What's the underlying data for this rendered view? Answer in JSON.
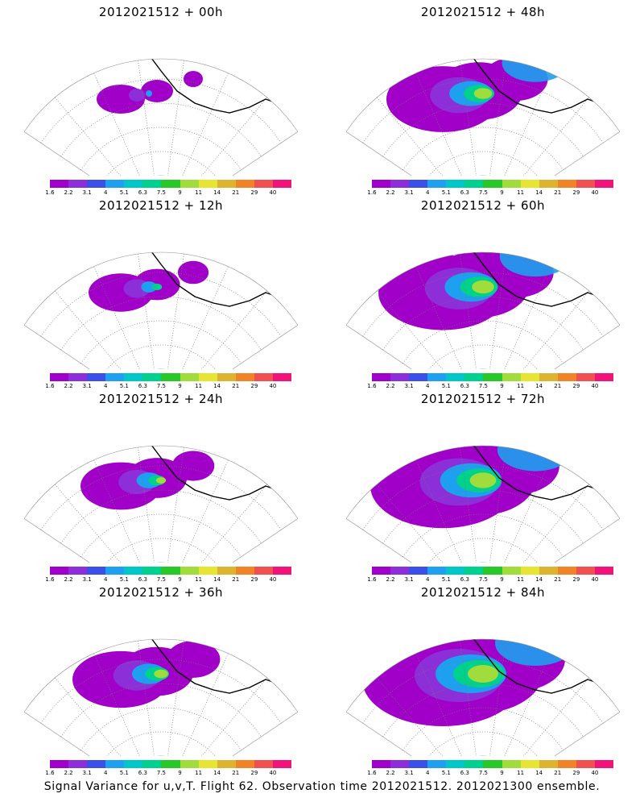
{
  "panels": [
    {
      "title": "2012021512 + 00h",
      "lead": 0
    },
    {
      "title": "2012021512 + 48h",
      "lead": 48
    },
    {
      "title": "2012021512 + 12h",
      "lead": 12
    },
    {
      "title": "2012021512 + 60h",
      "lead": 60
    },
    {
      "title": "2012021512 + 24h",
      "lead": 24
    },
    {
      "title": "2012021512 + 72h",
      "lead": 72
    },
    {
      "title": "2012021512 + 36h",
      "lead": 36
    },
    {
      "title": "2012021512 + 84h",
      "lead": 84
    }
  ],
  "colorbar": {
    "labels": [
      "1.6",
      "2.2",
      "3.1",
      "4",
      "5.1",
      "6.3",
      "7.5",
      "9",
      "11",
      "14",
      "21",
      "29",
      "40"
    ],
    "colors": [
      "#a000c8",
      "#8c2fd8",
      "#3a50e8",
      "#1ea0f0",
      "#00c8c8",
      "#00d28c",
      "#28c828",
      "#a0dc3c",
      "#e6e632",
      "#dcb432",
      "#f08228",
      "#f05050",
      "#f0147a"
    ]
  },
  "footer": "Signal Variance for u,v,T. Flight 62. Observation time 2012021512. 2012021300 ensemble."
}
